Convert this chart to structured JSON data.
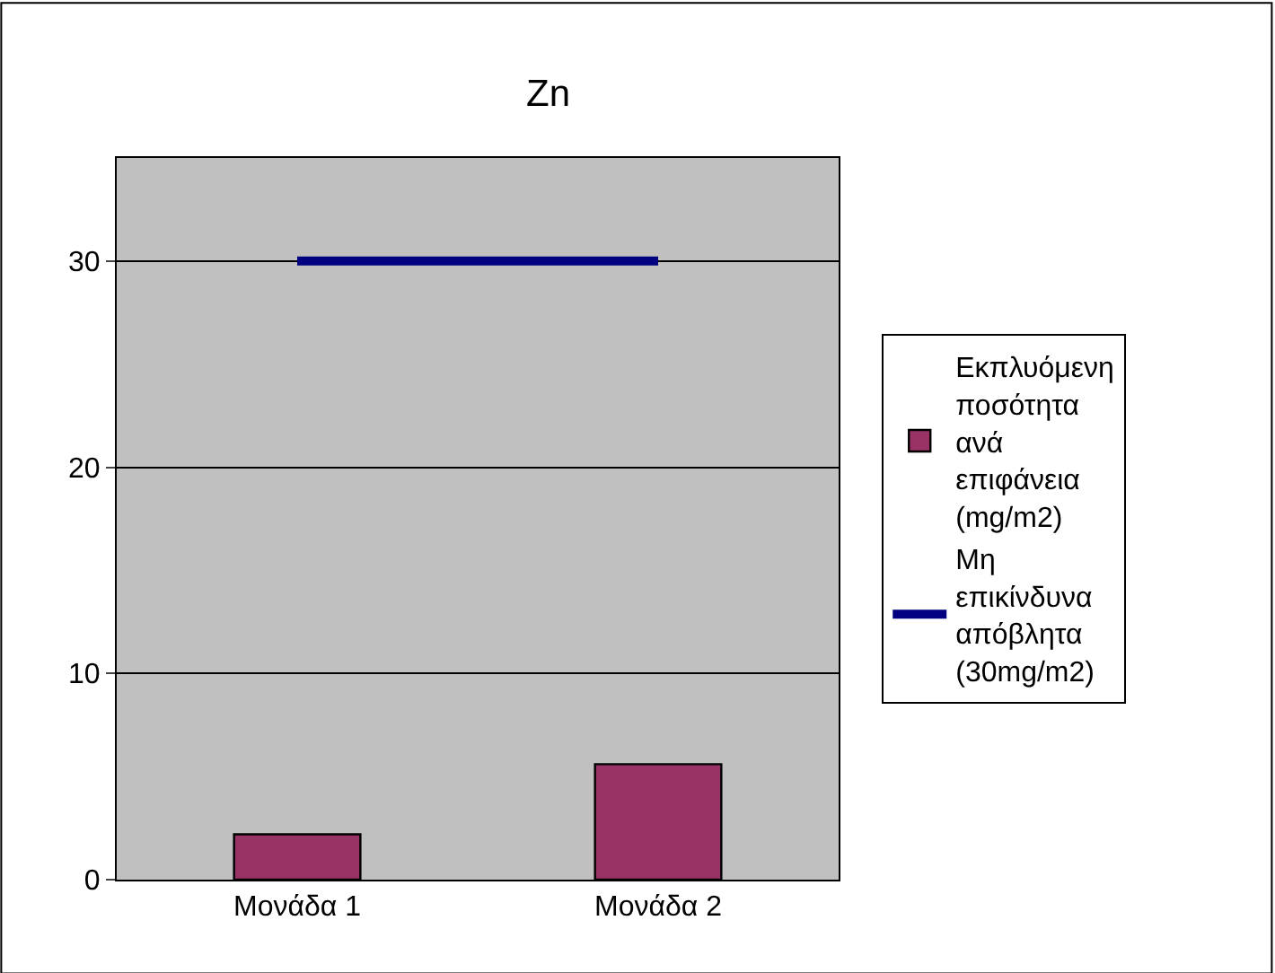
{
  "chart_data": {
    "type": "bar",
    "title": "Zn",
    "categories": [
      "Μονάδα 1",
      "Μονάδα 2"
    ],
    "series": [
      {
        "name": "Εκπλυόμενη ποσότητα ανά επιφάνεια (mg/m2)",
        "color": "#993366",
        "values": [
          2.2,
          5.6
        ]
      },
      {
        "name": "Μη επικίνδυνα απόβλητα (30mg/m2)",
        "type": "line",
        "color": "#000080",
        "values": [
          30,
          30
        ]
      }
    ],
    "ylim": [
      0,
      35
    ],
    "yticks": [
      0,
      10,
      20,
      30
    ],
    "grid": "y",
    "legend": "right",
    "marker": "none",
    "line_style": "solid"
  }
}
